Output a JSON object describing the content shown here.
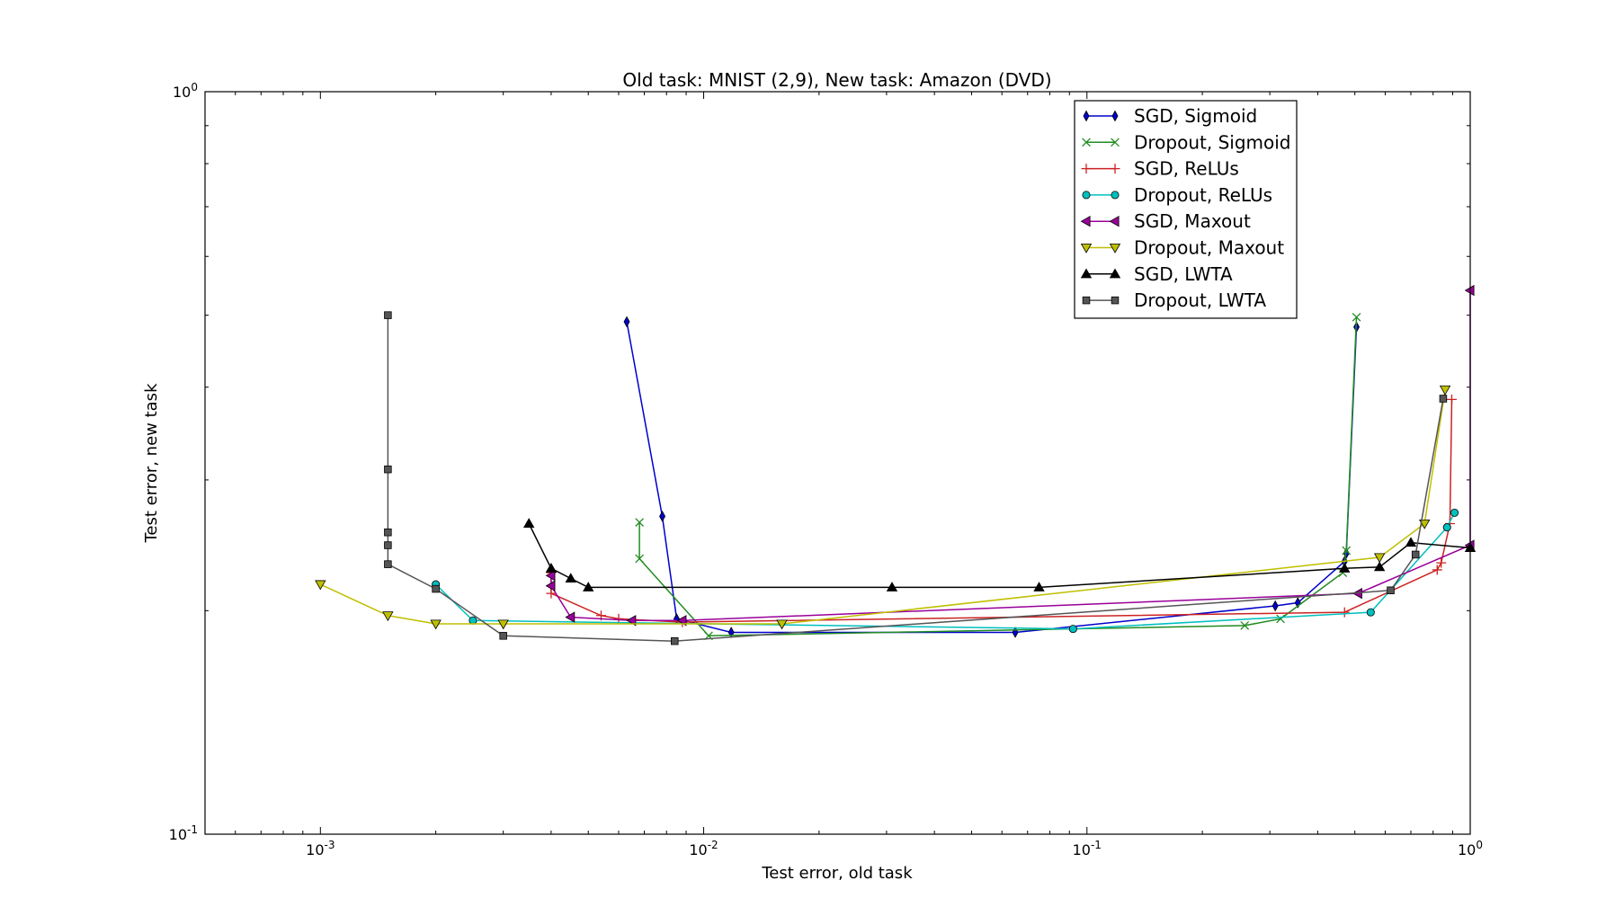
{
  "chart_data": {
    "type": "line",
    "title": "Old task: MNIST (2,9), New task: Amazon (DVD)",
    "xlabel": "Test error, old task",
    "ylabel": "Test error, new task",
    "xscale": "log",
    "yscale": "log",
    "xlim": [
      0.0005,
      1.0
    ],
    "ylim": [
      0.1,
      1.0
    ],
    "x_ticks": [
      {
        "value": 0.001,
        "base": "10",
        "exp": "-3"
      },
      {
        "value": 0.01,
        "base": "10",
        "exp": "-2"
      },
      {
        "value": 0.1,
        "base": "10",
        "exp": "-1"
      },
      {
        "value": 1,
        "base": "10",
        "exp": "0"
      }
    ],
    "y_ticks": [
      {
        "value": 0.1,
        "base": "10",
        "exp": "-1"
      },
      {
        "value": 1,
        "base": "10",
        "exp": "0"
      }
    ],
    "legend": "top-right",
    "grid": false,
    "series": [
      {
        "name": "SGD, Sigmoid",
        "color": "#0000cc",
        "marker": "diamond",
        "x": [
          0.0063,
          0.0078,
          0.0085,
          0.0118,
          0.065,
          0.31,
          0.355,
          0.47,
          0.475,
          0.505
        ],
        "y": [
          0.49,
          0.268,
          0.195,
          0.187,
          0.187,
          0.203,
          0.205,
          0.233,
          0.239,
          0.482
        ]
      },
      {
        "name": "Dropout, Sigmoid",
        "color": "#228b22",
        "marker": "x",
        "x": [
          0.0068,
          0.0068,
          0.0103,
          0.258,
          0.32,
          0.465,
          0.475,
          0.505
        ],
        "y": [
          0.263,
          0.235,
          0.185,
          0.191,
          0.195,
          0.225,
          0.241,
          0.497
        ]
      },
      {
        "name": "SGD, ReLUs",
        "color": "#cc2222",
        "marker": "plus",
        "x": [
          0.004,
          0.004,
          0.0054,
          0.006,
          0.0088,
          0.47,
          0.82,
          0.84,
          0.885,
          0.895
        ],
        "y": [
          0.225,
          0.211,
          0.197,
          0.195,
          0.193,
          0.199,
          0.227,
          0.232,
          0.262,
          0.385
        ]
      },
      {
        "name": "Dropout, ReLUs",
        "color": "#00bfbf",
        "marker": "circle",
        "x": [
          0.002,
          0.0025,
          0.092,
          0.55,
          0.87,
          0.91
        ],
        "y": [
          0.217,
          0.194,
          0.189,
          0.199,
          0.259,
          0.271
        ]
      },
      {
        "name": "SGD, Maxout",
        "color": "#990099",
        "marker": "triangle-left",
        "x": [
          0.004,
          0.004,
          0.0045,
          0.0065,
          0.0088,
          0.51,
          1.0,
          1.0
        ],
        "y": [
          0.223,
          0.216,
          0.196,
          0.194,
          0.194,
          0.211,
          0.245,
          0.54
        ]
      },
      {
        "name": "Dropout, Maxout",
        "color": "#bfbf00",
        "marker": "triangle-down",
        "x": [
          0.001,
          0.0015,
          0.002,
          0.003,
          0.016,
          0.58,
          0.76,
          0.86
        ],
        "y": [
          0.217,
          0.197,
          0.192,
          0.192,
          0.192,
          0.236,
          0.262,
          0.397
        ]
      },
      {
        "name": "SGD, LWTA",
        "color": "#000000",
        "marker": "triangle-up",
        "x": [
          0.0035,
          0.004,
          0.0045,
          0.005,
          0.031,
          0.075,
          0.47,
          0.58,
          0.7,
          1.0
        ],
        "y": [
          0.262,
          0.228,
          0.221,
          0.215,
          0.215,
          0.215,
          0.228,
          0.229,
          0.247,
          0.243
        ]
      },
      {
        "name": "Dropout, LWTA",
        "color": "#555555",
        "marker": "square",
        "x": [
          0.0015,
          0.0015,
          0.0015,
          0.0015,
          0.0015,
          0.002,
          0.003,
          0.0084,
          0.62,
          0.72,
          0.85
        ],
        "y": [
          0.5,
          0.31,
          0.255,
          0.245,
          0.231,
          0.214,
          0.185,
          0.182,
          0.213,
          0.238,
          0.386
        ]
      }
    ]
  }
}
